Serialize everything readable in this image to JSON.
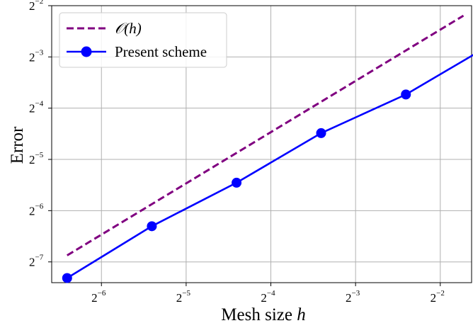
{
  "chart_data": {
    "type": "line",
    "xscale": "log2",
    "yscale": "log2",
    "xlim": [
      0.0104,
      0.323
    ],
    "ylim": [
      0.0059,
      0.25
    ],
    "grid": true,
    "legend_position": "top-left",
    "xlabel": "Mesh size",
    "xlabel_var": "h",
    "ylabel": "Error",
    "x_ticks": [
      {
        "base": "2",
        "exp": "−6",
        "value": 0.015625
      },
      {
        "base": "2",
        "exp": "−5",
        "value": 0.03125
      },
      {
        "base": "2",
        "exp": "−4",
        "value": 0.0625
      },
      {
        "base": "2",
        "exp": "−3",
        "value": 0.125
      },
      {
        "base": "2",
        "exp": "−2",
        "value": 0.25
      }
    ],
    "y_ticks": [
      {
        "base": "2",
        "exp": "−7",
        "value": 0.0078125
      },
      {
        "base": "2",
        "exp": "−6",
        "value": 0.015625
      },
      {
        "base": "2",
        "exp": "−5",
        "value": 0.03125
      },
      {
        "base": "2",
        "exp": "−4",
        "value": 0.0625
      },
      {
        "base": "2",
        "exp": "−3",
        "value": 0.125
      },
      {
        "base": "2",
        "exp": "−2",
        "value": 0.25
      }
    ],
    "series": [
      {
        "name": "𝒪(h)",
        "style": "dashed",
        "color": "#800080",
        "x": [
          0.0118,
          0.3021
        ],
        "y": [
          0.00853,
          0.2184
        ]
      },
      {
        "name": "Present scheme",
        "style": "solid-markers",
        "color": "#0000ff",
        "x": [
          0.0118,
          0.0236,
          0.0472,
          0.0943,
          0.1887,
          0.3774
        ],
        "y": [
          0.00628,
          0.01266,
          0.0228,
          0.0446,
          0.0752,
          0.1475
        ]
      }
    ]
  }
}
